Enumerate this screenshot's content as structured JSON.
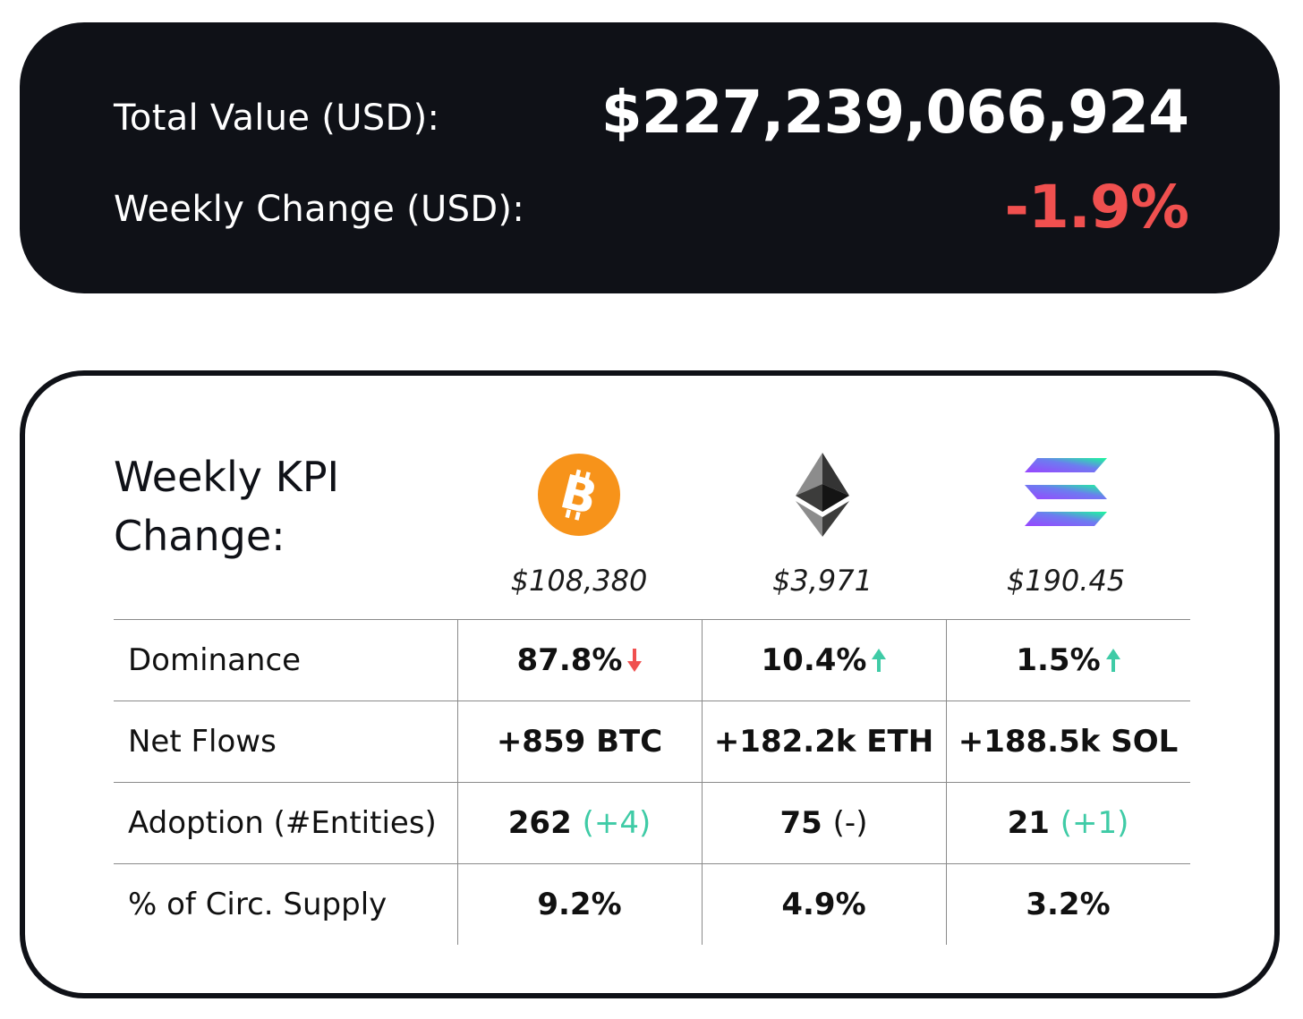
{
  "summary": {
    "total_label": "Total Value (USD):",
    "total_value": "$227,239,066,924",
    "weekly_label": "Weekly Change (USD):",
    "weekly_value": "-1.9%",
    "weekly_color": "#f0504f"
  },
  "kpi": {
    "title": "Weekly KPI Change:",
    "coins": [
      {
        "icon": "bitcoin-icon",
        "price": "$108,380"
      },
      {
        "icon": "ethereum-icon",
        "price": "$3,971"
      },
      {
        "icon": "solana-icon",
        "price": "$190.45"
      }
    ],
    "rows": {
      "dominance": {
        "label": "Dominance",
        "btc": "87.8%",
        "btc_dir": "down",
        "eth": "10.4%",
        "eth_dir": "up",
        "sol": "1.5%",
        "sol_dir": "up"
      },
      "net_flows": {
        "label": "Net Flows",
        "btc": "+859 BTC",
        "eth": "+182.2k ETH",
        "sol": "+188.5k SOL"
      },
      "adoption": {
        "label": "Adoption (#Entities)",
        "btc": "262",
        "btc_delta": "(+4)",
        "eth": "75",
        "eth_delta": "(-)",
        "sol": "21",
        "sol_delta": "(+1)"
      },
      "supply": {
        "label": "% of Circ. Supply",
        "btc": "9.2%",
        "eth": "4.9%",
        "sol": "3.2%"
      }
    },
    "colors": {
      "positive": "#3fcba6",
      "negative": "#f0504f",
      "bitcoin": "#f7931a"
    }
  }
}
